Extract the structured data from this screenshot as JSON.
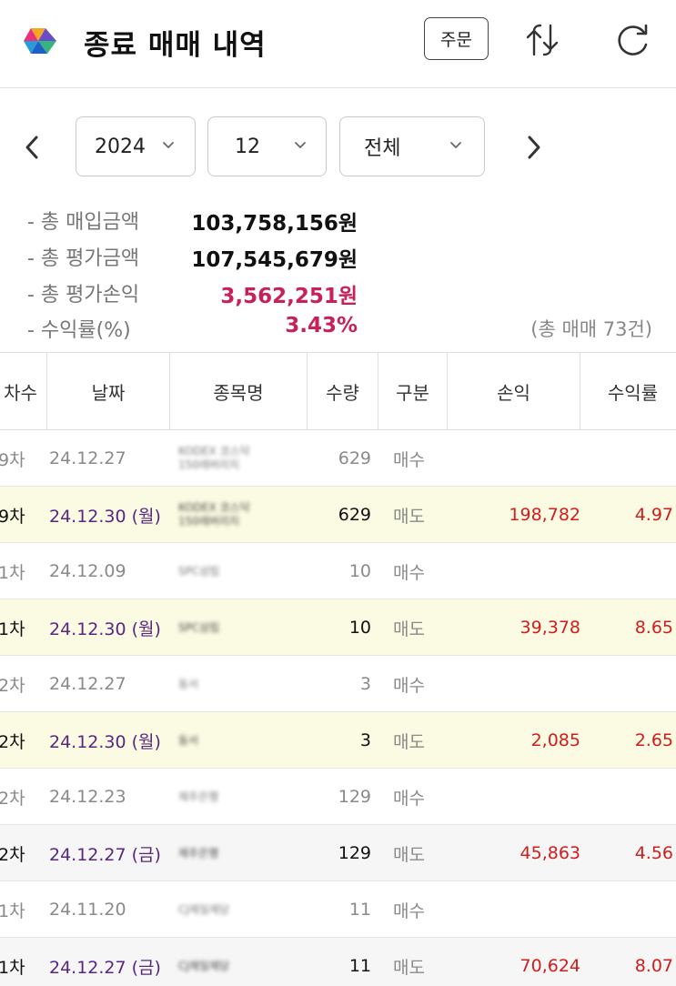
{
  "header": {
    "title": "종료 매매 내역",
    "order_label": "주문"
  },
  "filters": {
    "year": "2024",
    "month": "12",
    "type": "전체"
  },
  "summary": {
    "items": [
      {
        "label": "- 총 매입금액",
        "value": "103,758,156원",
        "highlight": false
      },
      {
        "label": "- 총 평가금액",
        "value": "107,545,679원",
        "highlight": false
      },
      {
        "label": "- 총 평가손익",
        "value": "3,562,251원",
        "highlight": true
      },
      {
        "label": "- 수익률(%)",
        "value": "3.43%",
        "highlight": true
      }
    ],
    "trade_count": "(총 매매 73건)"
  },
  "table": {
    "headers": [
      "차수",
      "날짜",
      "종목명",
      "수량",
      "구분",
      "손익",
      "수익률"
    ],
    "rows": [
      {
        "round": "9차",
        "date": "24.12.27",
        "name": [
          "KODEX 코스닥",
          "150레버리지"
        ],
        "qty": "629",
        "type": "매수",
        "profit": "",
        "rate": "",
        "kind": "buy"
      },
      {
        "round": "9차",
        "date": "24.12.30 (월)",
        "name": [
          "KODEX 코스닥",
          "150레버리지"
        ],
        "qty": "629",
        "type": "매도",
        "profit": "198,782",
        "rate": "4.97",
        "kind": "sell"
      },
      {
        "round": "1차",
        "date": "24.12.09",
        "name": [
          "SPC삼립"
        ],
        "qty": "10",
        "type": "매수",
        "profit": "",
        "rate": "",
        "kind": "buy"
      },
      {
        "round": "1차",
        "date": "24.12.30 (월)",
        "name": [
          "SPC삼립"
        ],
        "qty": "10",
        "type": "매도",
        "profit": "39,378",
        "rate": "8.65",
        "kind": "sell"
      },
      {
        "round": "2차",
        "date": "24.12.27",
        "name": [
          "동서"
        ],
        "qty": "3",
        "type": "매수",
        "profit": "",
        "rate": "",
        "kind": "buy"
      },
      {
        "round": "2차",
        "date": "24.12.30 (월)",
        "name": [
          "동서"
        ],
        "qty": "3",
        "type": "매도",
        "profit": "2,085",
        "rate": "2.65",
        "kind": "sell"
      },
      {
        "round": "2차",
        "date": "24.12.23",
        "name": [
          "제주은행"
        ],
        "qty": "129",
        "type": "매수",
        "profit": "",
        "rate": "",
        "kind": "buy"
      },
      {
        "round": "2차",
        "date": "24.12.27 (금)",
        "name": [
          "제주은행"
        ],
        "qty": "129",
        "type": "매도",
        "profit": "45,863",
        "rate": "4.56",
        "kind": "sell-gray"
      },
      {
        "round": "1차",
        "date": "24.11.20",
        "name": [
          "CJ제일제당"
        ],
        "qty": "11",
        "type": "매수",
        "profit": "",
        "rate": "",
        "kind": "buy"
      },
      {
        "round": "1차",
        "date": "24.12.27 (금)",
        "name": [
          "CJ제일제당"
        ],
        "qty": "11",
        "type": "매도",
        "profit": "70,624",
        "rate": "8.07",
        "kind": "sell-gray"
      }
    ]
  },
  "icons": {
    "logo": "app-logo-icon",
    "swap": "swap-arrows-icon",
    "refresh": "refresh-icon",
    "prev": "chevron-left-icon",
    "next": "chevron-right-icon"
  },
  "colors": {
    "accent_red": "#c7205b",
    "profit_red": "#d01d1d",
    "sell_date_purple": "#5a2680",
    "sell_row_bg": "#fbfbe3"
  }
}
